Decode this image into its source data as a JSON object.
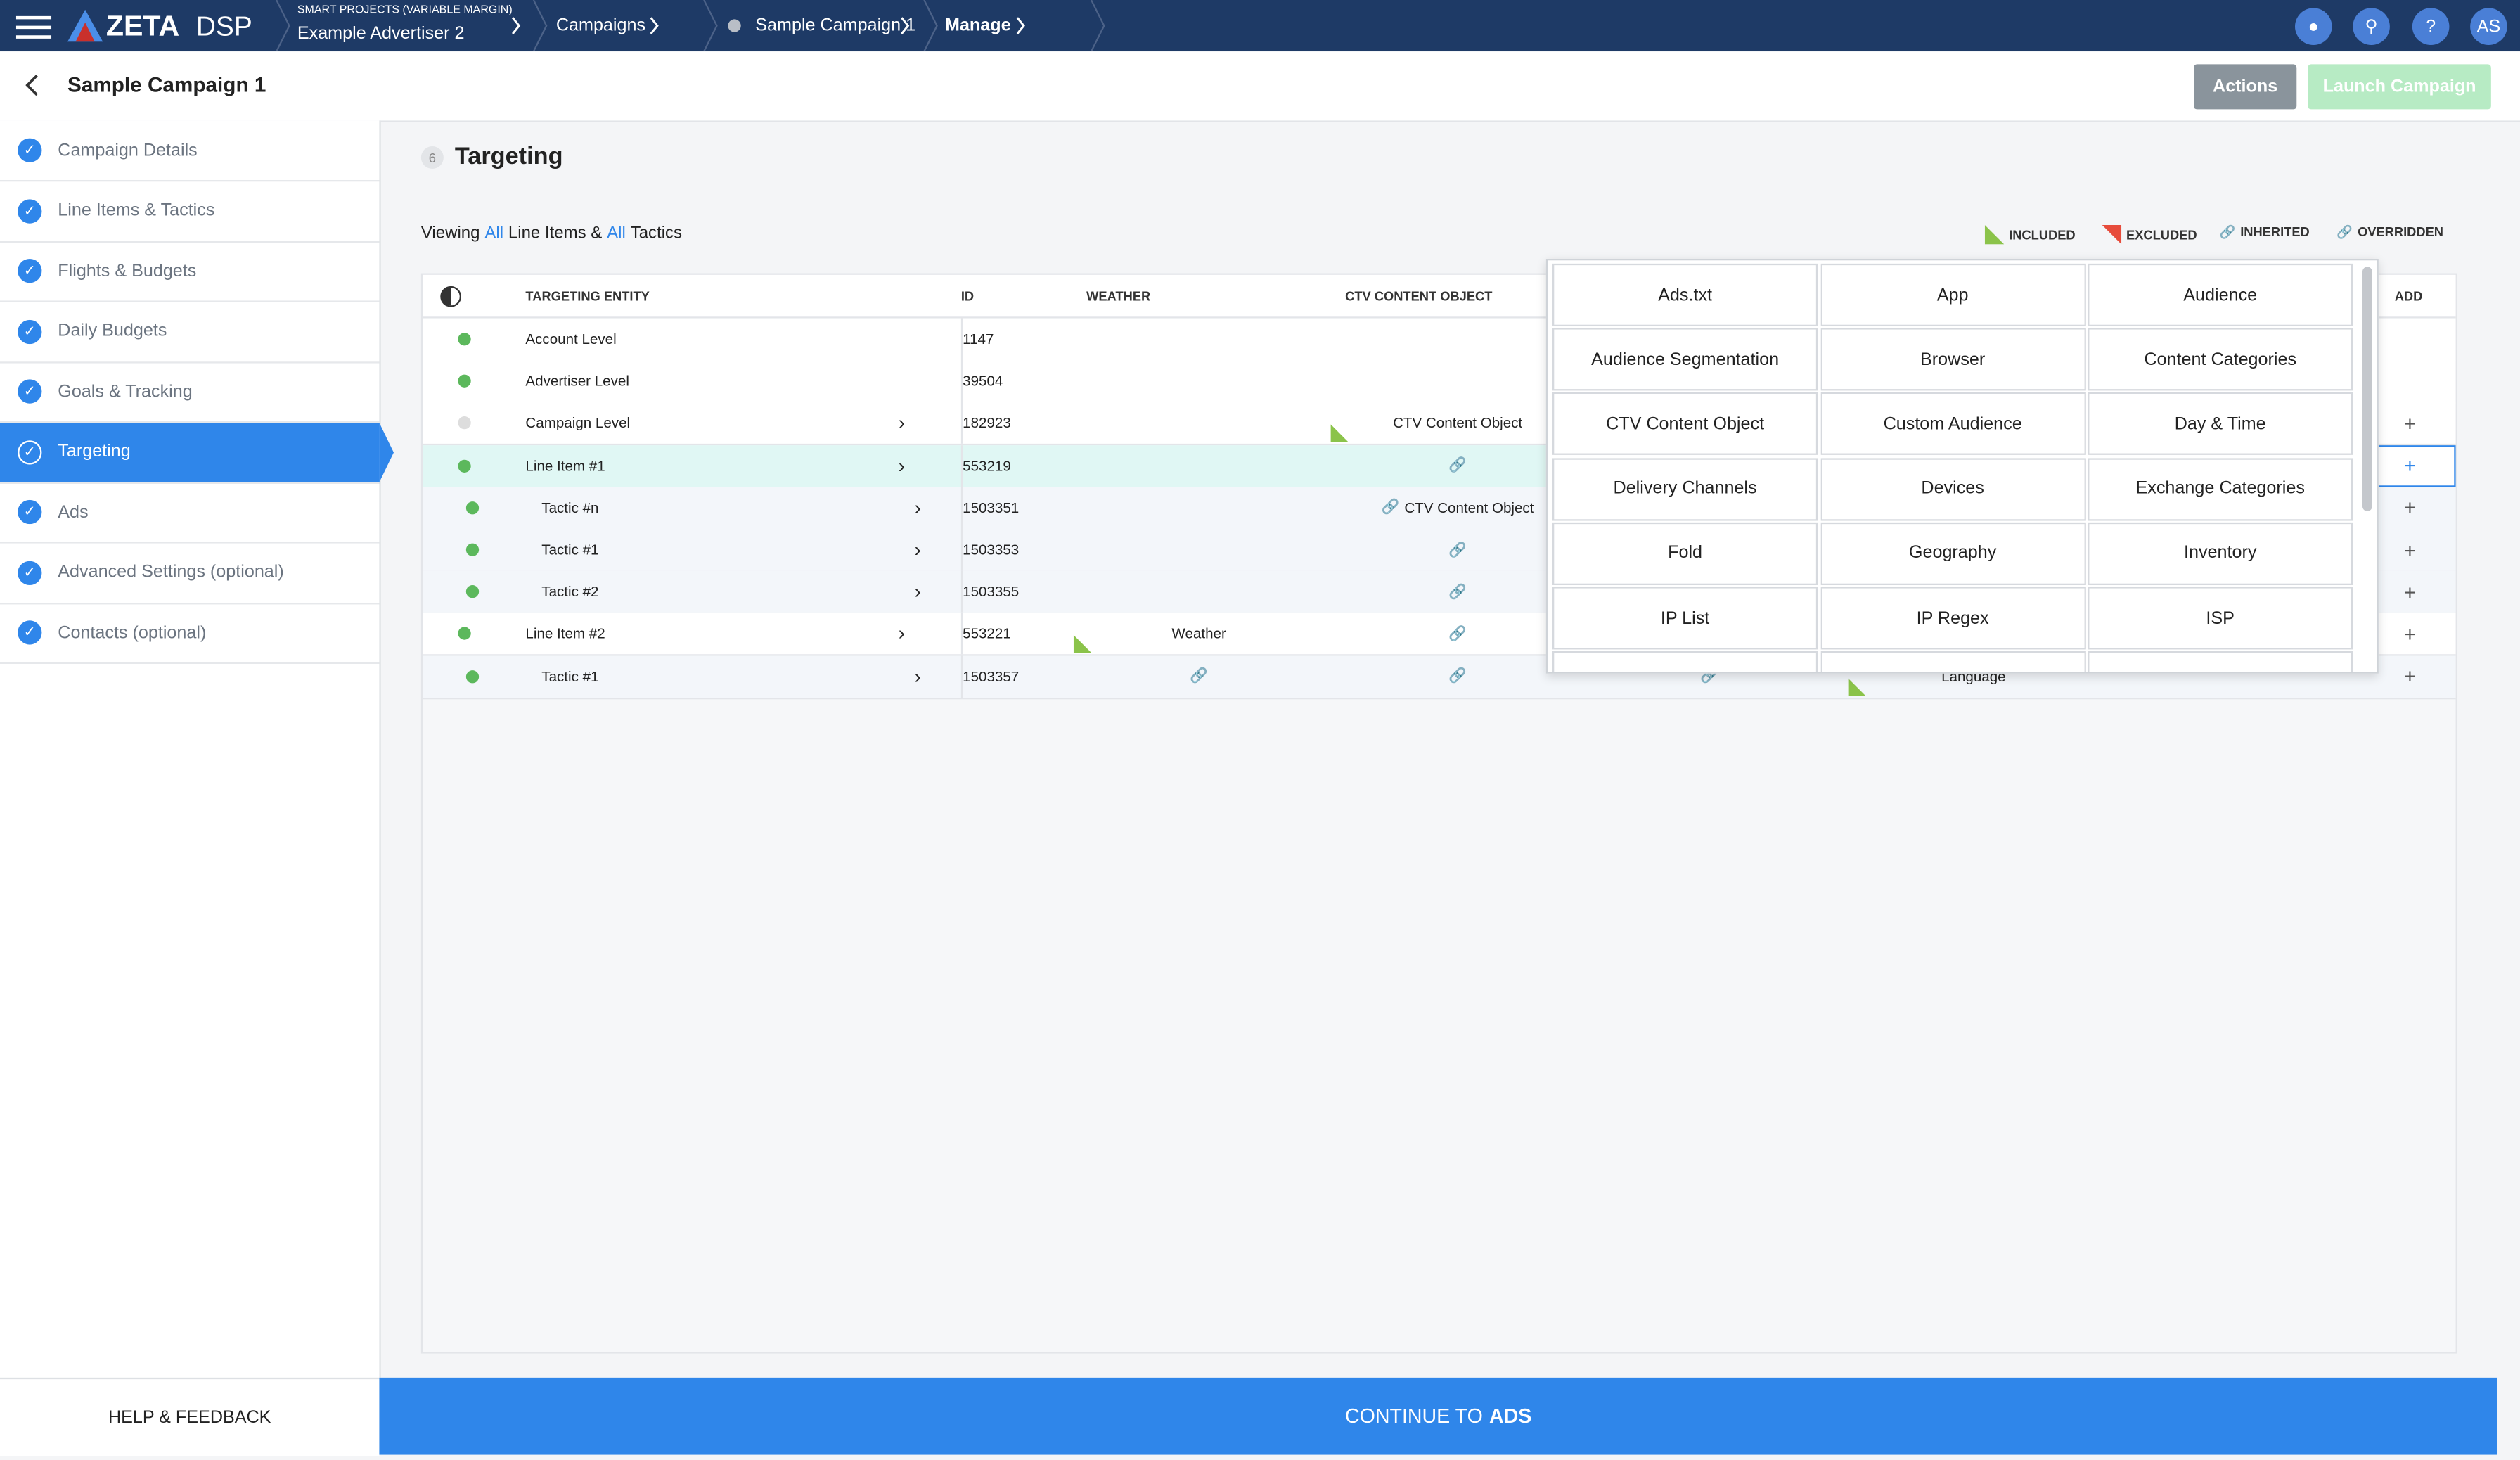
{
  "header": {
    "logo": "ZETA",
    "product": "DSP",
    "breadcrumbs": [
      {
        "sub": "SMART PROJECTS (VARIABLE MARGIN)",
        "label": "Example Advertiser 2"
      },
      {
        "label": "Campaigns"
      },
      {
        "label": "Sample Campaign 1"
      },
      {
        "label": "Manage"
      }
    ],
    "help_icon": "?",
    "user": "AS"
  },
  "campaign": {
    "title": "Sample Campaign 1",
    "actions": "Actions",
    "launch": "Launch Campaign"
  },
  "steps": [
    "Campaign Details",
    "Line Items & Tactics",
    "Flights & Budgets",
    "Daily Budgets",
    "Goals & Tracking",
    "Targeting",
    "Ads",
    "Advanced Settings (optional)",
    "Contacts (optional)"
  ],
  "help": "HELP & FEEDBACK",
  "section": {
    "number": "6",
    "title": "Targeting"
  },
  "viewing": [
    "Viewing",
    "All",
    "Line Items &",
    "All",
    "Tactics"
  ],
  "legend": [
    "INCLUDED",
    "EXCLUDED",
    "INHERITED",
    "OVERRIDDEN"
  ],
  "table": {
    "headers": [
      "TARGETING ENTITY",
      "ID",
      "WEATHER",
      "CTV CONTENT OBJECT",
      "ADD"
    ],
    "rows": [
      {
        "name": "Account Level",
        "id": 1147
      },
      {
        "name": "Advertiser Level",
        "id": 39504
      },
      {
        "name": "Campaign Level",
        "id": 182923,
        "ctv": "CTV Content Object"
      },
      {
        "name": "Line Item #1",
        "id": 553219
      },
      {
        "name": "Tactic #n",
        "id": 1503351,
        "ctv": "CTV Content Object"
      },
      {
        "name": "Tactic #1",
        "id": 1503353
      },
      {
        "name": "Tactic #2",
        "id": 1503355
      },
      {
        "name": "Line Item #2",
        "id": 553221,
        "weather": "Weather"
      },
      {
        "name": "Tactic #1",
        "id": 1503357,
        "extra": "Language"
      }
    ]
  },
  "dropdown": [
    "Ads.txt",
    "App",
    "Audience",
    "Audience Segmentation",
    "Browser",
    "Content Categories",
    "CTV Content Object",
    "Custom Audience",
    "Day & Time",
    "Delivery Channels",
    "Devices",
    "Exchange Categories",
    "Fold",
    "Geography",
    "Inventory",
    "IP List",
    "IP Regex",
    "ISP"
  ],
  "footer": {
    "text": "CONTINUE TO",
    "bold": "ADS"
  }
}
